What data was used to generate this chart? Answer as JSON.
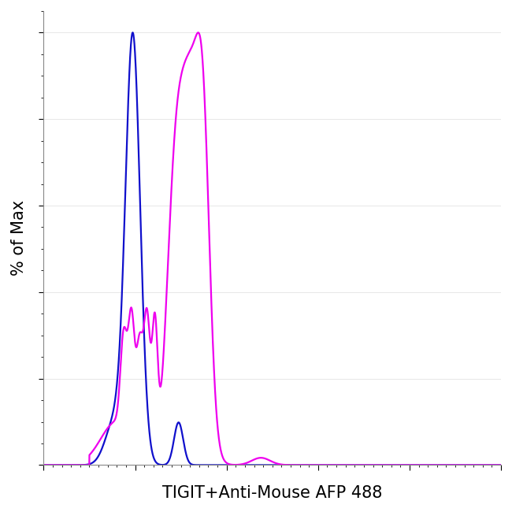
{
  "title": "",
  "xlabel": "TIGIT+Anti-Mouse AFP 488",
  "ylabel": "% of Max",
  "xlabel_fontsize": 15,
  "ylabel_fontsize": 15,
  "background_color": "#ffffff",
  "plot_bg_color": "#ffffff",
  "blue_color": "#1010cc",
  "magenta_color": "#ee00ee",
  "line_width": 1.6,
  "xlim": [
    0,
    1000
  ],
  "ylim": [
    0,
    105
  ]
}
